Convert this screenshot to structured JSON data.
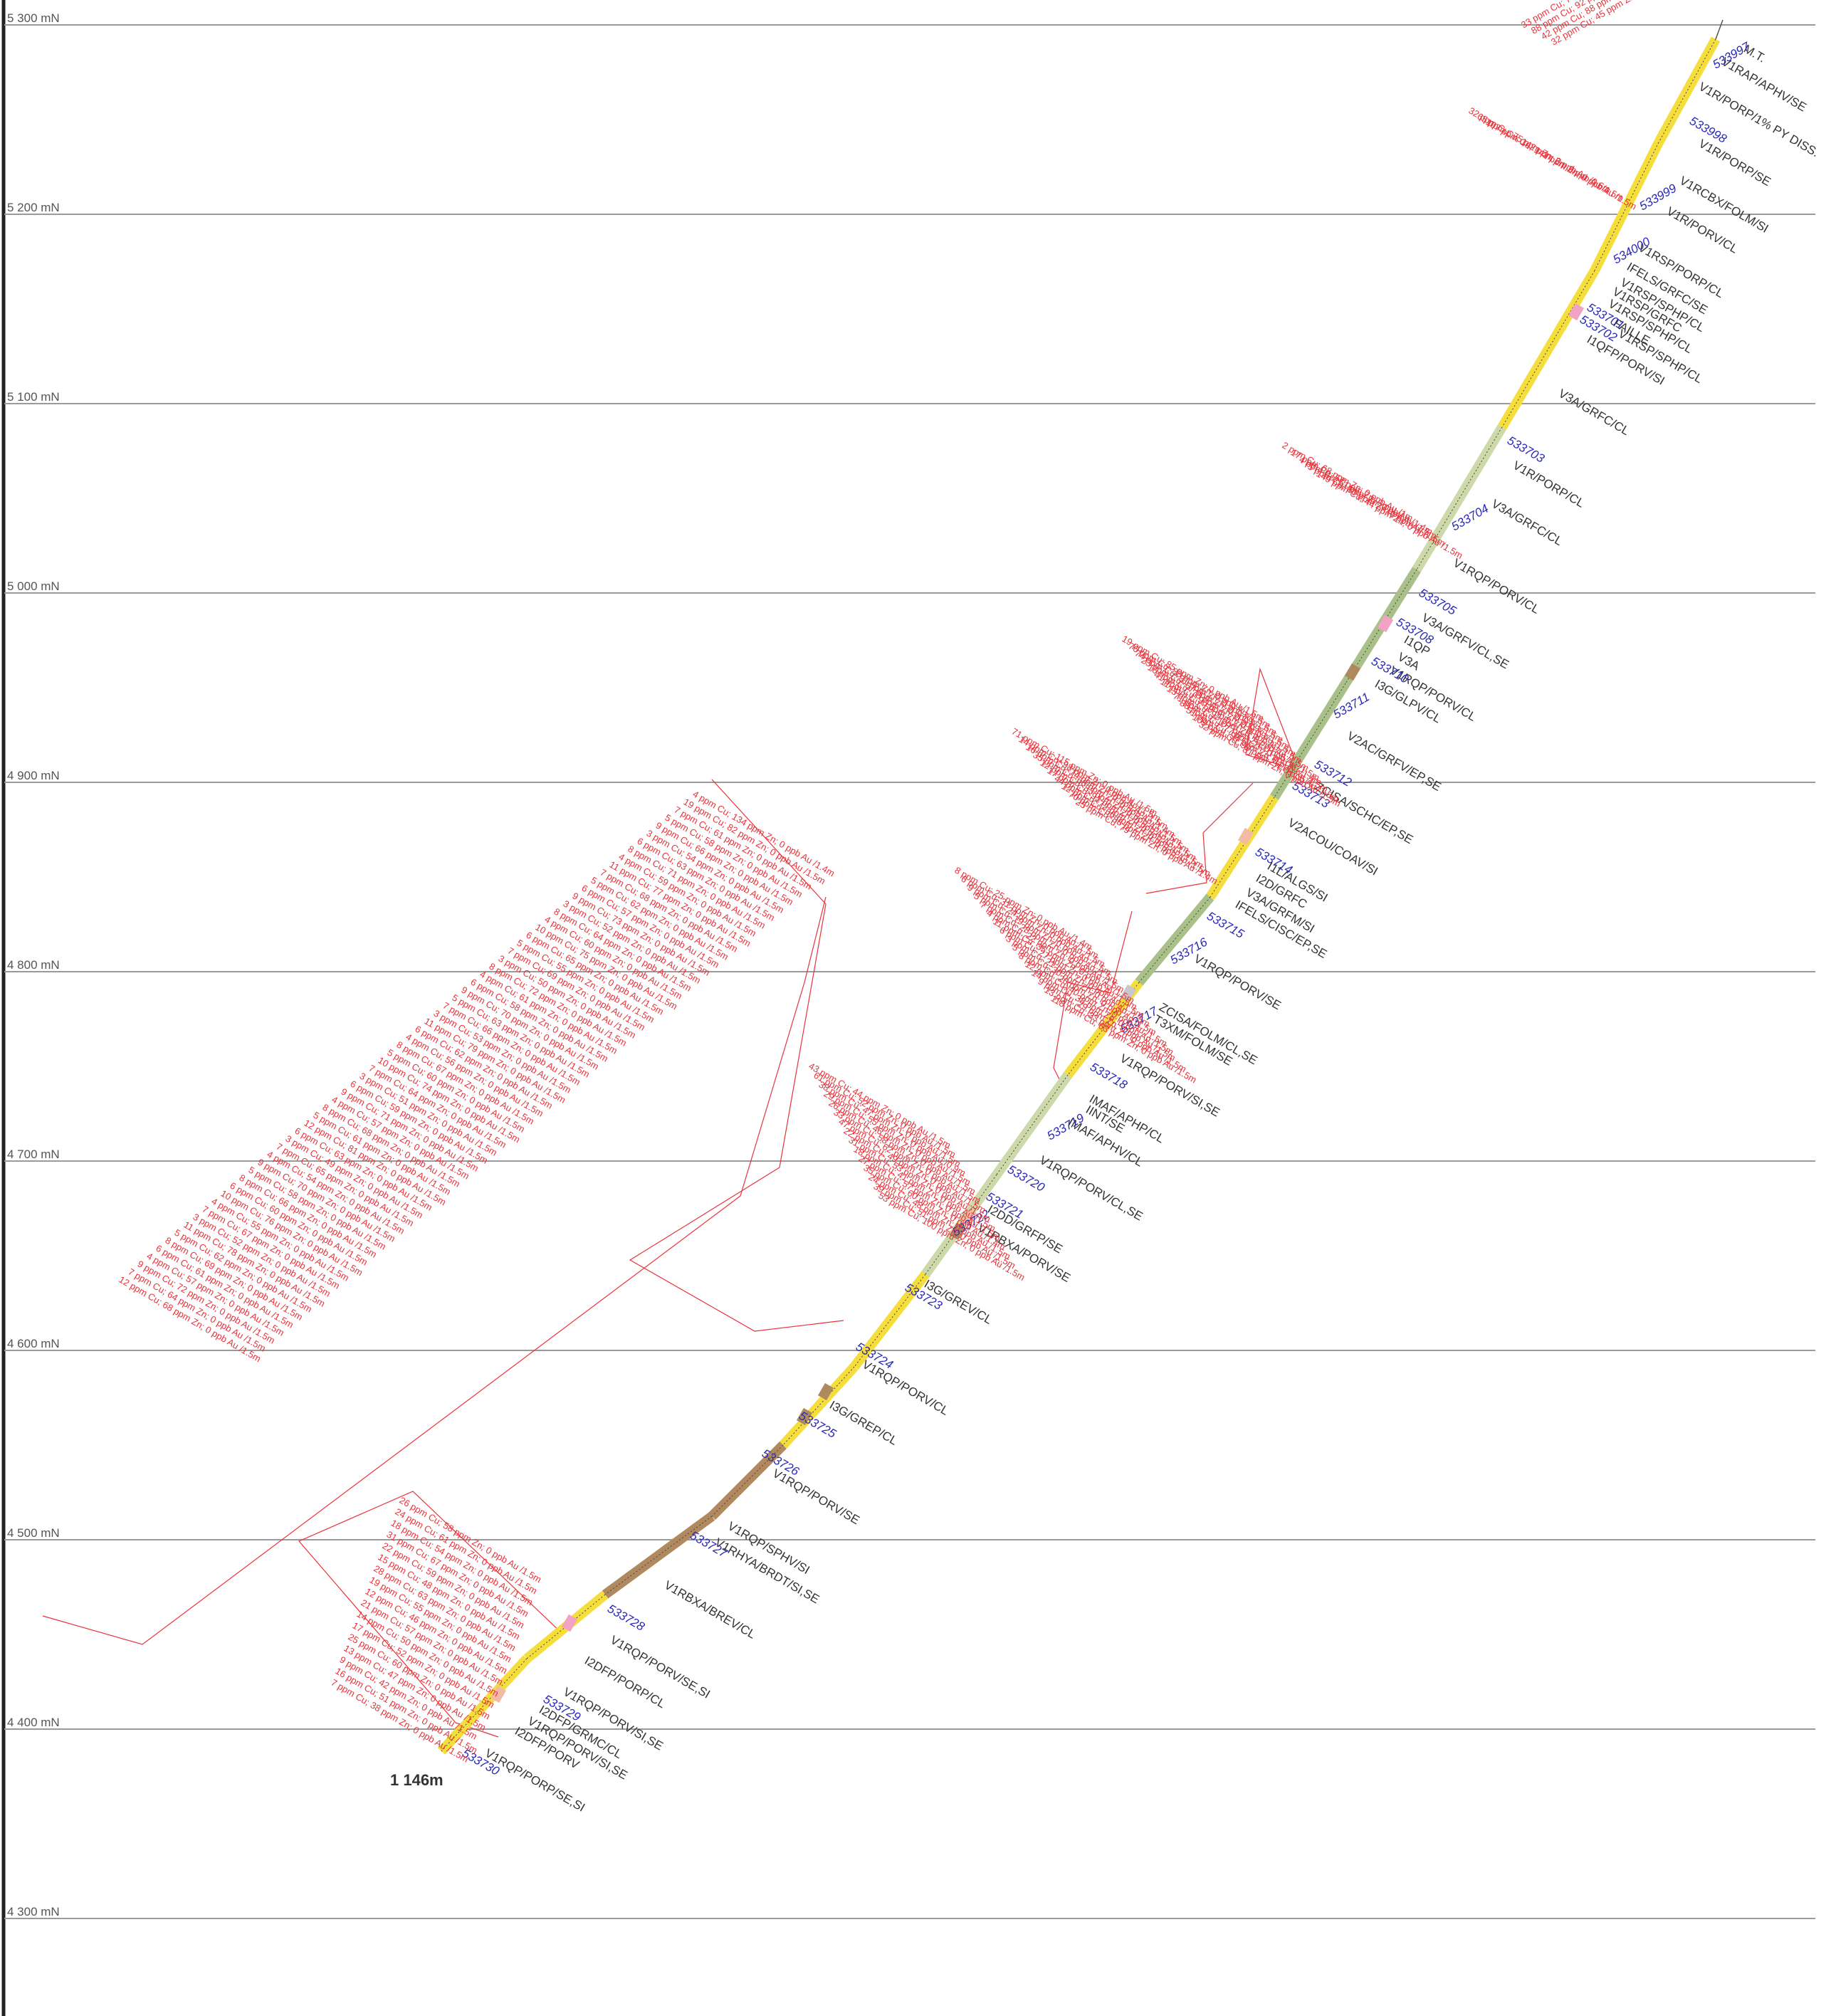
{
  "section": {
    "grid_labels": [
      "5 300 mN",
      "5 200 mN",
      "5 100 mN",
      "5 000 mN",
      "4 900 mN",
      "4 800 mN",
      "4 700 mN",
      "4 600 mN",
      "4 500 mN",
      "4 400 mN",
      "4 300 mN"
    ],
    "end_of_hole": "1 146m",
    "colors": {
      "rhyolite": "#f5de3c",
      "andesite": "#a9c089",
      "andesite_light": "#cdd9a8",
      "gabbro": "#b08a5e",
      "felsic": "#f2a2c4",
      "diorite": "#f3bba3",
      "fault": "#c8c8c8",
      "assay": "#e8323a",
      "sample": "#2a2ab8"
    },
    "lithology_labels": [
      "M.T.",
      "V1RAP/APHV/SE",
      "V1R/PORP/1% PY DISS.",
      "V1R/PORP/SE",
      "V1RCBX/FOLM/SI",
      "V1R/PORV/CL",
      "V1RSP/PORP/CL",
      "IFELS/GRFC/SE",
      "V1RSP/SPHP/CL",
      "V1RSP/GRFC",
      "V1RSP/SPHP/CL",
      "FAILLE",
      "V1RSP/SPHP/CL",
      "I1QFP/PORV/SI",
      "V3A/GRFC/CL",
      "V1R/PORP/CL",
      "V3A/GRFC/CL",
      "V1RQP/PORV/CL",
      "V3A/GRFV/CL,SE",
      "I1QP",
      "V3A",
      "V1RQP/PORV/CL",
      "I3G/GLPV/CL",
      "V2AC/GRFV/EP,SE",
      "ZCISA/SCHC/EP,SE",
      "V2ACOU/COAV/SI",
      "I1L/ALGS/SI",
      "I2D/GRFC",
      "V3A/GRFM/SI",
      "IFELS/CISC/EP,SE",
      "V1RQP/PORV/SE",
      "ZCISA/FOLM/CL,SE",
      "T3XM/FOLM/SE",
      "V1RQP/PORV/SI,SE",
      "IMAF/APHP/CL",
      "IINT/SE",
      "IMAF/APHV/CL",
      "V1RQP/PORV/CL,SE",
      "I2DD/GRFP/SE",
      "V1RBXA/PORV/SE",
      "I3G/GREV/CL",
      "V1RQP/PORV/CL",
      "I3G/GREP/CL",
      "V1RQP/PORV/SE",
      "V1RQP/SPHV/SI",
      "V1RHYA/BRDT/SI,SE",
      "V1RBXA/BREV/CL",
      "V1RQP/PORV/SE,SI",
      "I2DFP/PORP/CL",
      "V1RQP/PORV/SI,SE",
      "I2DFP/GRMC/CL",
      "V1RQP/PORV/SI,SE",
      "I2DFP/PORV",
      "V1RQP/PORP/SE,SI"
    ],
    "samples": [
      "533997",
      "533998",
      "533999",
      "534000",
      "533701",
      "533702",
      "533703",
      "533704",
      "533705",
      "533708",
      "533710",
      "533711",
      "533712",
      "533713",
      "533714",
      "533715",
      "533716",
      "533717",
      "533718",
      "533719",
      "533720",
      "533721",
      "533722",
      "533723",
      "533724",
      "533725",
      "533726",
      "533727",
      "533728",
      "533729",
      "533730"
    ],
    "assays_top": [
      "33 ppm Cu; 75 ppm Zn; 0 ppb Au /1.5m",
      "88 ppm Cu; 92 ppm Zn; 0 ppb Au /1.5m",
      "42 ppm Cu; 88 ppm Zn; 0 ppb Au /1.5m",
      "32 ppm Cu; 45 ppm Zn; 0 ppb Au /1.5m"
    ],
    "assays_upper": [
      "32 ppm Cu; 75 ppm Zn; 0 ppb Au /0.6m",
      "65 ppm Cu; 142 ppm Zn; 0 ppb Au /1.5m",
      "107 ppm Cu; 141 ppm Zn; 0 ppb Au /1.5m"
    ],
    "assays_mid": [
      "2 ppm Cu; 68 ppm Zn; 0 ppb Au /1m",
      "17 ppm Cu; 52 ppm Zn; 0 ppb Au /1.4m",
      "4 ppm Cu; 51 ppm Zn; 0 ppb Au /1.5m",
      "5 ppm Cu; 60 ppm Zn; 0 ppb Au /1.5m",
      "149 ppm Cu; 44 ppm Zn; 0 ppb Au /1.5m"
    ],
    "assay_cluster_1": [
      "19 ppm Cu; 85 ppm Zn; 0 ppb Au /1.5m",
      "76 ppm Cu; 88 ppm Zn; 0 ppb Au /1.5m",
      "74 ppm Cu; 81 ppm Zn; 0 ppb Au /1.5m",
      "23 ppm Cu; 67 ppm Zn; 0 ppb Au /1.5m",
      "16 ppm Cu; 78 ppm Zn; 0 ppb Au /1.5m",
      "41 ppm Cu; 96 ppm Zn; 0 ppb Au /1.5m",
      "11 ppm Cu; 69 ppm Zn; 0 ppb Au /1.5m",
      "13 ppm Cu; 92 ppm Zn; 0 ppb Au /1.5m",
      "71 ppm Cu; 107 ppm Zn; 0 ppb Au /1.5m",
      "88 ppm Cu; 77 ppm Zn; 0 ppb Au /1.4m",
      "51 ppm Cu; 94 ppm Zn; 0 ppb Au /1.5m",
      "109 ppm Cu; 99 ppm Zn; 0 ppb Au /1.5m",
      "32 ppm Cu; 81 ppm Zn; 0 ppb Au /1.5m"
    ],
    "assay_cluster_2": [
      "71 ppm Cu; 115 ppm Zn; 0 ppb Au /1.5m",
      "14 ppm Cu; 98 ppm Zn; 0 ppb Au /1.5m",
      "16 ppm Cu; 74 ppm Zn; 0 ppb Au /1.5m",
      "35 ppm Cu; 68 ppm Zn; 0 ppb Au /1.4m",
      "12 ppm Cu; 83 ppm Zn; 0 ppb Au /1.5m",
      "17 ppm Cu; 91 ppm Zn; 0 ppb Au /1.5m",
      "44 ppm Cu; 72 ppm Zn; 0 ppb Au /1.5m",
      "12 ppm Cu; 66 ppm Zn; 0 ppb Au /1.5m",
      "70 ppm Cu; 88 ppm Zn; 0 ppb Au /1.5m",
      "25 ppm Cu; 79 ppm Zn; 0 ppb Au /1.4m"
    ],
    "assay_cluster_3": [
      "8 ppm Cu; 25 ppm Zn; 0 ppb Au /1.4m",
      "6 ppm Cu; 31 ppm Zn; 0 ppb Au /1.5m",
      "9 ppm Cu; 24 ppm Zn; 0 ppb Au /1.5m",
      "5 ppm Cu; 19 ppm Zn; 0 ppb Au /1.5m",
      "7 ppm Cu; 28 ppm Zn; 0 ppb Au /1.5m",
      "4 ppm Cu; 22 ppm Zn; 0 ppb Au /1.5m",
      "11 ppm Cu; 35 ppm Zn; 0 ppb Au /1.5m",
      "6 ppm Cu; 27 ppm Zn; 0 ppb Au /1.5m",
      "3 ppm Cu; 21 ppm Zn; 0 ppb Au /1.5m",
      "5 ppm Cu; 30 ppm Zn; 0 ppb Au /1.5m",
      "8 ppm Cu; 26 ppm Zn; 0 ppb Au /1.5m",
      "12 ppm Cu; 40 ppm Zn; 0 ppb Au /1.5m",
      "14 ppm Cu; 38 ppm Zn; 0 ppb Au /1.5m",
      "9 ppm Cu; 29 ppm Zn; 0 ppb Au /1.5m",
      "13 ppm Cu; 33 ppm Zn; 0 ppb Au /1.5m",
      "118 ppm Cu; 63 ppm Zn; 0 ppb Au /1.5m"
    ],
    "assay_cluster_4": [
      "43 ppm Cu; 44 ppm Zn; 0 ppb Au /1.5m",
      "61 ppm Cu; 52 ppm Zn; 0 ppb Au /1.5m",
      "38 ppm Cu; 47 ppm Zn; 0 ppb Au /1.5m",
      "29 ppm Cu; 55 ppm Zn; 0 ppb Au /0.9m",
      "26 ppm Cu; 46 ppm Zn; 0 ppb Au /1.5m",
      "33 ppm Cu; 58 ppm Zn; 0 ppb Au /1.5m",
      "47 ppm Cu; 62 ppm Zn; 0 ppb Au /1.5m",
      "22 ppm Cu; 49 ppm Zn; 0 ppb Au /1.5m",
      "31 ppm Cu; 53 ppm Zn; 0 ppb Au /1.5m",
      "18 ppm Cu; 41 ppm Zn; 0 ppb Au /1.5m",
      "27 ppm Cu; 57 ppm Zn; 0 ppb Au /1.5m",
      "35 ppm Cu; 60 ppm Zn; 0 ppb Au /1.4m",
      "24 ppm Cu; 48 ppm Zn; 0 ppb Au /1.5m",
      "39 ppm Cu; 51 ppm Zn; 0 ppb Au /1.5m",
      "53 ppm Cu; 100 ppm Zn; 0 ppb Au /1.5m"
    ],
    "assay_cluster_big": [
      "4 ppm Cu; 134 ppm Zn; 0 ppb Au /1.4m",
      "19 ppm Cu; 82 ppm Zn; 0 ppb Au /1.5m",
      "7 ppm Cu; 61 ppm Zn; 0 ppb Au /1.5m",
      "5 ppm Cu; 58 ppm Zn; 0 ppb Au /1.5m",
      "9 ppm Cu; 66 ppm Zn; 0 ppb Au /1.5m",
      "3 ppm Cu; 54 ppm Zn; 0 ppb Au /1.5m",
      "6 ppm Cu; 63 ppm Zn; 0 ppb Au /1.5m",
      "8 ppm Cu; 71 ppm Zn; 0 ppb Au /1.5m",
      "4 ppm Cu; 59 ppm Zn; 0 ppb Au /1.5m",
      "11 ppm Cu; 77 ppm Zn; 0 ppb Au /1.5m",
      "7 ppm Cu; 68 ppm Zn; 0 ppb Au /1.5m",
      "5 ppm Cu; 62 ppm Zn; 0 ppb Au /1.5m",
      "6 ppm Cu; 57 ppm Zn; 0 ppb Au /1.5m",
      "9 ppm Cu; 73 ppm Zn; 0 ppb Au /1.5m",
      "3 ppm Cu; 52 ppm Zn; 0 ppb Au /1.5m",
      "8 ppm Cu; 64 ppm Zn; 0 ppb Au /1.5m",
      "4 ppm Cu; 60 ppm Zn; 0 ppb Au /1.5m",
      "10 ppm Cu; 75 ppm Zn; 0 ppb Au /1.5m",
      "6 ppm Cu; 65 ppm Zn; 0 ppb Au /1.5m",
      "5 ppm Cu; 55 ppm Zn; 0 ppb Au /1.5m",
      "7 ppm Cu; 69 ppm Zn; 0 ppb Au /1.5m",
      "3 ppm Cu; 50 ppm Zn; 0 ppb Au /1.5m",
      "8 ppm Cu; 72 ppm Zn; 0 ppb Au /1.5m",
      "4 ppm Cu; 61 ppm Zn; 0 ppb Au /1.5m",
      "6 ppm Cu; 58 ppm Zn; 0 ppb Au /1.5m",
      "9 ppm Cu; 70 ppm Zn; 0 ppb Au /1.5m",
      "5 ppm Cu; 63 ppm Zn; 0 ppb Au /1.5m",
      "7 ppm Cu; 66 ppm Zn; 0 ppb Au /1.5m",
      "3 ppm Cu; 53 ppm Zn; 0 ppb Au /1.5m",
      "11 ppm Cu; 79 ppm Zn; 0 ppb Au /1.5m",
      "6 ppm Cu; 62 ppm Zn; 0 ppb Au /1.5m",
      "4 ppm Cu; 56 ppm Zn; 0 ppb Au /1.5m",
      "8 ppm Cu; 67 ppm Zn; 0 ppb Au /1.5m",
      "5 ppm Cu; 60 ppm Zn; 0 ppb Au /1.5m",
      "10 ppm Cu; 74 ppm Zn; 0 ppb Au /1.5m",
      "7 ppm Cu; 64 ppm Zn; 0 ppb Au /1.5m",
      "3 ppm Cu; 51 ppm Zn; 0 ppb Au /1.5m",
      "6 ppm Cu; 59 ppm Zn; 0 ppb Au /1.5m",
      "9 ppm Cu; 71 ppm Zn; 0 ppb Au /1.5m",
      "4 ppm Cu; 57 ppm Zn; 0 ppb Au /1.5m",
      "8 ppm Cu; 68 ppm Zn; 0 ppb Au /1.5m",
      "5 ppm Cu; 61 ppm Zn; 0 ppb Au /1.5m",
      "12 ppm Cu; 81 ppm Zn; 0 ppb Au /1.5m",
      "6 ppm Cu; 63 ppm Zn; 0 ppb Au /1.5m",
      "3 ppm Cu; 49 ppm Zn; 0 ppb Au /1.5m",
      "7 ppm Cu; 65 ppm Zn; 0 ppb Au /1.5m",
      "4 ppm Cu; 54 ppm Zn; 0 ppb Au /1.5m",
      "9 ppm Cu; 70 ppm Zn; 0 ppb Au /1.5m",
      "5 ppm Cu; 58 ppm Zn; 0 ppb Au /1.5m",
      "8 ppm Cu; 66 ppm Zn; 0 ppb Au /1.5m",
      "6 ppm Cu; 60 ppm Zn; 0 ppb Au /1.5m",
      "10 ppm Cu; 76 ppm Zn; 0 ppb Au /1.5m",
      "4 ppm Cu; 55 ppm Zn; 0 ppb Au /1.5m",
      "7 ppm Cu; 67 ppm Zn; 0 ppb Au /1.5m",
      "3 ppm Cu; 52 ppm Zn; 0 ppb Au /1.5m",
      "11 ppm Cu; 78 ppm Zn; 0 ppb Au /1.5m",
      "5 ppm Cu; 62 ppm Zn; 0 ppb Au /1.5m",
      "8 ppm Cu; 69 ppm Zn; 0 ppb Au /1.5m",
      "6 ppm Cu; 61 ppm Zn; 0 ppb Au /1.5m",
      "4 ppm Cu; 57 ppm Zn; 0 ppb Au /1.5m",
      "9 ppm Cu; 72 ppm Zn; 0 ppb Au /1.5m",
      "7 ppm Cu; 64 ppm Zn; 0 ppb Au /1.5m",
      "12 ppm Cu; 68 ppm Zn; 0 ppb Au /1.5m"
    ],
    "assay_cluster_bottom": [
      "26 ppm Cu; 58 ppm Zn; 0 ppb Au /1.5m",
      "24 ppm Cu; 61 ppm Zn; 0 ppb Au /1.5m",
      "18 ppm Cu; 54 ppm Zn; 0 ppb Au /1.5m",
      "31 ppm Cu; 67 ppm Zn; 0 ppb Au /1.5m",
      "22 ppm Cu; 59 ppm Zn; 0 ppb Au /1.5m",
      "15 ppm Cu; 48 ppm Zn; 0 ppb Au /1.5m",
      "28 ppm Cu; 63 ppm Zn; 0 ppb Au /1.5m",
      "19 ppm Cu; 55 ppm Zn; 0 ppb Au /1.5m",
      "12 ppm Cu; 46 ppm Zn; 0 ppb Au /1.5m",
      "21 ppm Cu; 57 ppm Zn; 0 ppb Au /1.5m",
      "14 ppm Cu; 50 ppm Zn; 0 ppb Au /1.5m",
      "17 ppm Cu; 52 ppm Zn; 0 ppb Au /1.5m",
      "25 ppm Cu; 60 ppm Zn; 0 ppb Au /1.5m",
      "13 ppm Cu; 47 ppm Zn; 0 ppb Au /1.5m",
      "9 ppm Cu; 42 ppm Zn; 0 ppb Au /1.5m",
      "16 ppm Cu; 51 ppm Zn; 0 ppb Au /1.5m",
      "7 ppm Cu; 38 ppm Zn; 0 ppb Au /1.5m"
    ]
  }
}
